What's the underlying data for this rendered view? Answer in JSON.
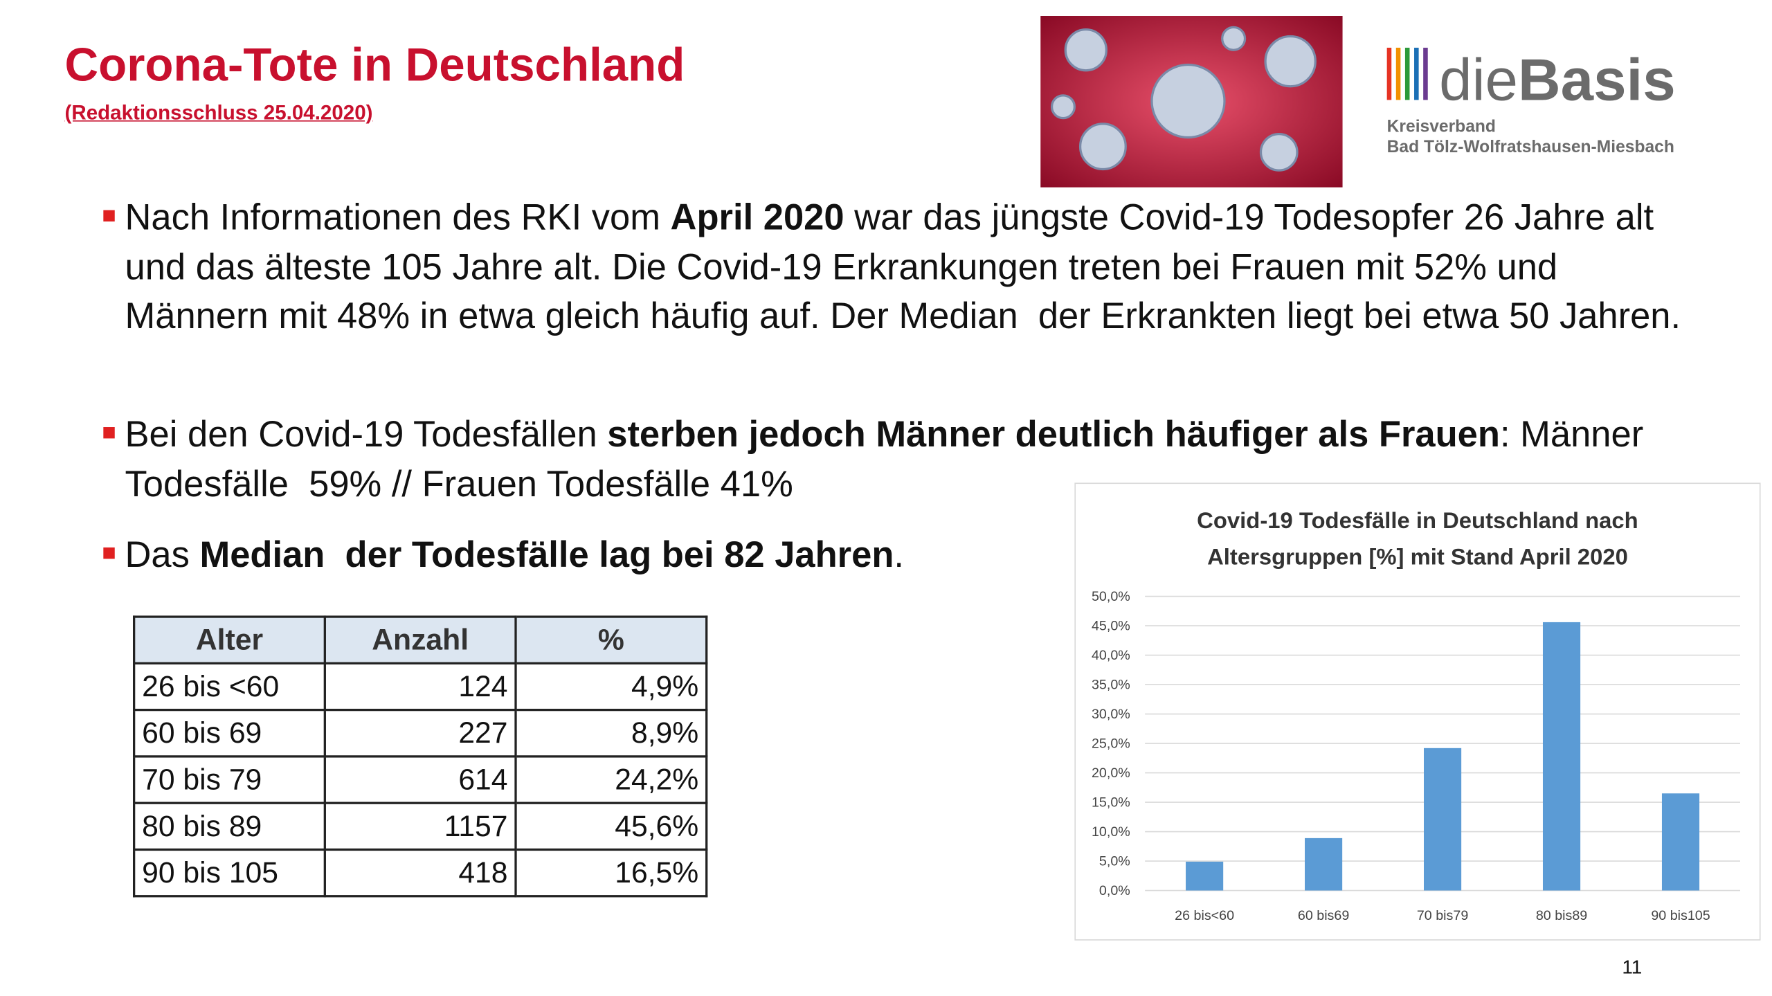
{
  "header": {
    "title": "Corona-Tote in Deutschland",
    "subtitle": "(Redaktionsschluss 25.04.2020)"
  },
  "logo": {
    "name_light": "die",
    "name_bold": "Basis",
    "line1": "Kreisverband",
    "line2": "Bad Tölz-Wolfratshausen-Miesbach"
  },
  "bullets": [
    {
      "runs": [
        {
          "text": "Nach Informationen des RKI vom ",
          "bold": false
        },
        {
          "text": "April 2020",
          "bold": true
        },
        {
          "text": " war das jüngste Covid-19 Todesopfer 26 Jahre alt und das älteste 105 Jahre alt. Die Covid-19 Erkrankungen treten bei Frauen mit 52% und Männern mit 48% in etwa gleich häufig auf. Der Median  der Erkrankten liegt bei etwa 50 Jahren.",
          "bold": false
        }
      ]
    },
    {
      "runs": [
        {
          "text": "Bei den Covid-19 Todesfällen ",
          "bold": false
        },
        {
          "text": "sterben jedoch Männer deutlich häufiger als Frauen",
          "bold": true
        },
        {
          "text": ": Männer Todesfälle  59% // Frauen Todesfälle 41%",
          "bold": false
        }
      ]
    },
    {
      "runs": [
        {
          "text": "Das ",
          "bold": false
        },
        {
          "text": "Median  der Todesfälle lag bei 82 Jahren",
          "bold": true
        },
        {
          "text": ".",
          "bold": false
        }
      ]
    }
  ],
  "table": {
    "header": [
      "Alter",
      "Anzahl",
      "%"
    ],
    "rows": [
      [
        "26 bis <60",
        "124",
        "4,9%"
      ],
      [
        "60 bis 69",
        "227",
        "8,9%"
      ],
      [
        "70 bis 79",
        "614",
        "24,2%"
      ],
      [
        "80 bis 89",
        "1157",
        "45,6%"
      ],
      [
        "90 bis 105",
        "418",
        "16,5%"
      ]
    ]
  },
  "chart_data": {
    "type": "bar",
    "title": [
      "Covid-19 Todesfälle in Deutschland nach",
      "Altersgruppen [%] mit Stand April 2020"
    ],
    "categories": [
      "26 bis<60",
      "60 bis69",
      "70 bis79",
      "80 bis89",
      "90 bis105"
    ],
    "values": [
      4.9,
      8.9,
      24.2,
      45.6,
      16.5
    ],
    "color": "#5b9bd5",
    "ylim": [
      0,
      50
    ],
    "yticks": [
      {
        "value": 0,
        "label": "0,0%"
      },
      {
        "value": 5,
        "label": "5,0%"
      },
      {
        "value": 10,
        "label": "10,0%"
      },
      {
        "value": 15,
        "label": "15,0%"
      },
      {
        "value": 20,
        "label": "20,0%"
      },
      {
        "value": 25,
        "label": "25,0%"
      },
      {
        "value": 30,
        "label": "30,0%"
      },
      {
        "value": 35,
        "label": "35,0%"
      },
      {
        "value": 40,
        "label": "40,0%"
      },
      {
        "value": 45,
        "label": "45,0%"
      },
      {
        "value": 50,
        "label": "50,0%"
      }
    ],
    "grid": true
  },
  "page_number": "11"
}
